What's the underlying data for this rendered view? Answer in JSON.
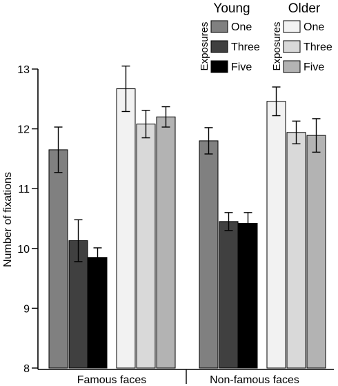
{
  "chart_data": {
    "type": "bar",
    "categories": [
      "Famous faces",
      "Non-famous faces"
    ],
    "ylabel": "Number of fixations",
    "xlabel": "",
    "ylim": [
      8,
      13
    ],
    "yticks": [
      8,
      9,
      10,
      11,
      12,
      13
    ],
    "legend": {
      "placement": "top-right",
      "groups": [
        {
          "title": "Young",
          "subtitle": "Exposures",
          "entries": [
            "One",
            "Three",
            "Five"
          ]
        },
        {
          "title": "Older",
          "subtitle": "Exposures",
          "entries": [
            "One",
            "Three",
            "Five"
          ]
        }
      ]
    },
    "series": [
      {
        "name": "Young One",
        "color": "#808080",
        "values": [
          11.65,
          11.8
        ],
        "errors": [
          0.38,
          0.22
        ]
      },
      {
        "name": "Young Three",
        "color": "#404040",
        "values": [
          10.13,
          10.45
        ],
        "errors": [
          0.35,
          0.15
        ]
      },
      {
        "name": "Young Five",
        "color": "#000000",
        "values": [
          9.85,
          10.42
        ],
        "errors": [
          0.16,
          0.18
        ]
      },
      {
        "name": "Older One",
        "color": "#f2f2f2",
        "values": [
          12.67,
          12.46
        ],
        "errors": [
          0.38,
          0.24
        ]
      },
      {
        "name": "Older Three",
        "color": "#d9d9d9",
        "values": [
          12.08,
          11.94
        ],
        "errors": [
          0.23,
          0.19
        ]
      },
      {
        "name": "Older Five",
        "color": "#b3b3b3",
        "values": [
          12.2,
          11.89
        ],
        "errors": [
          0.17,
          0.28
        ]
      }
    ]
  }
}
